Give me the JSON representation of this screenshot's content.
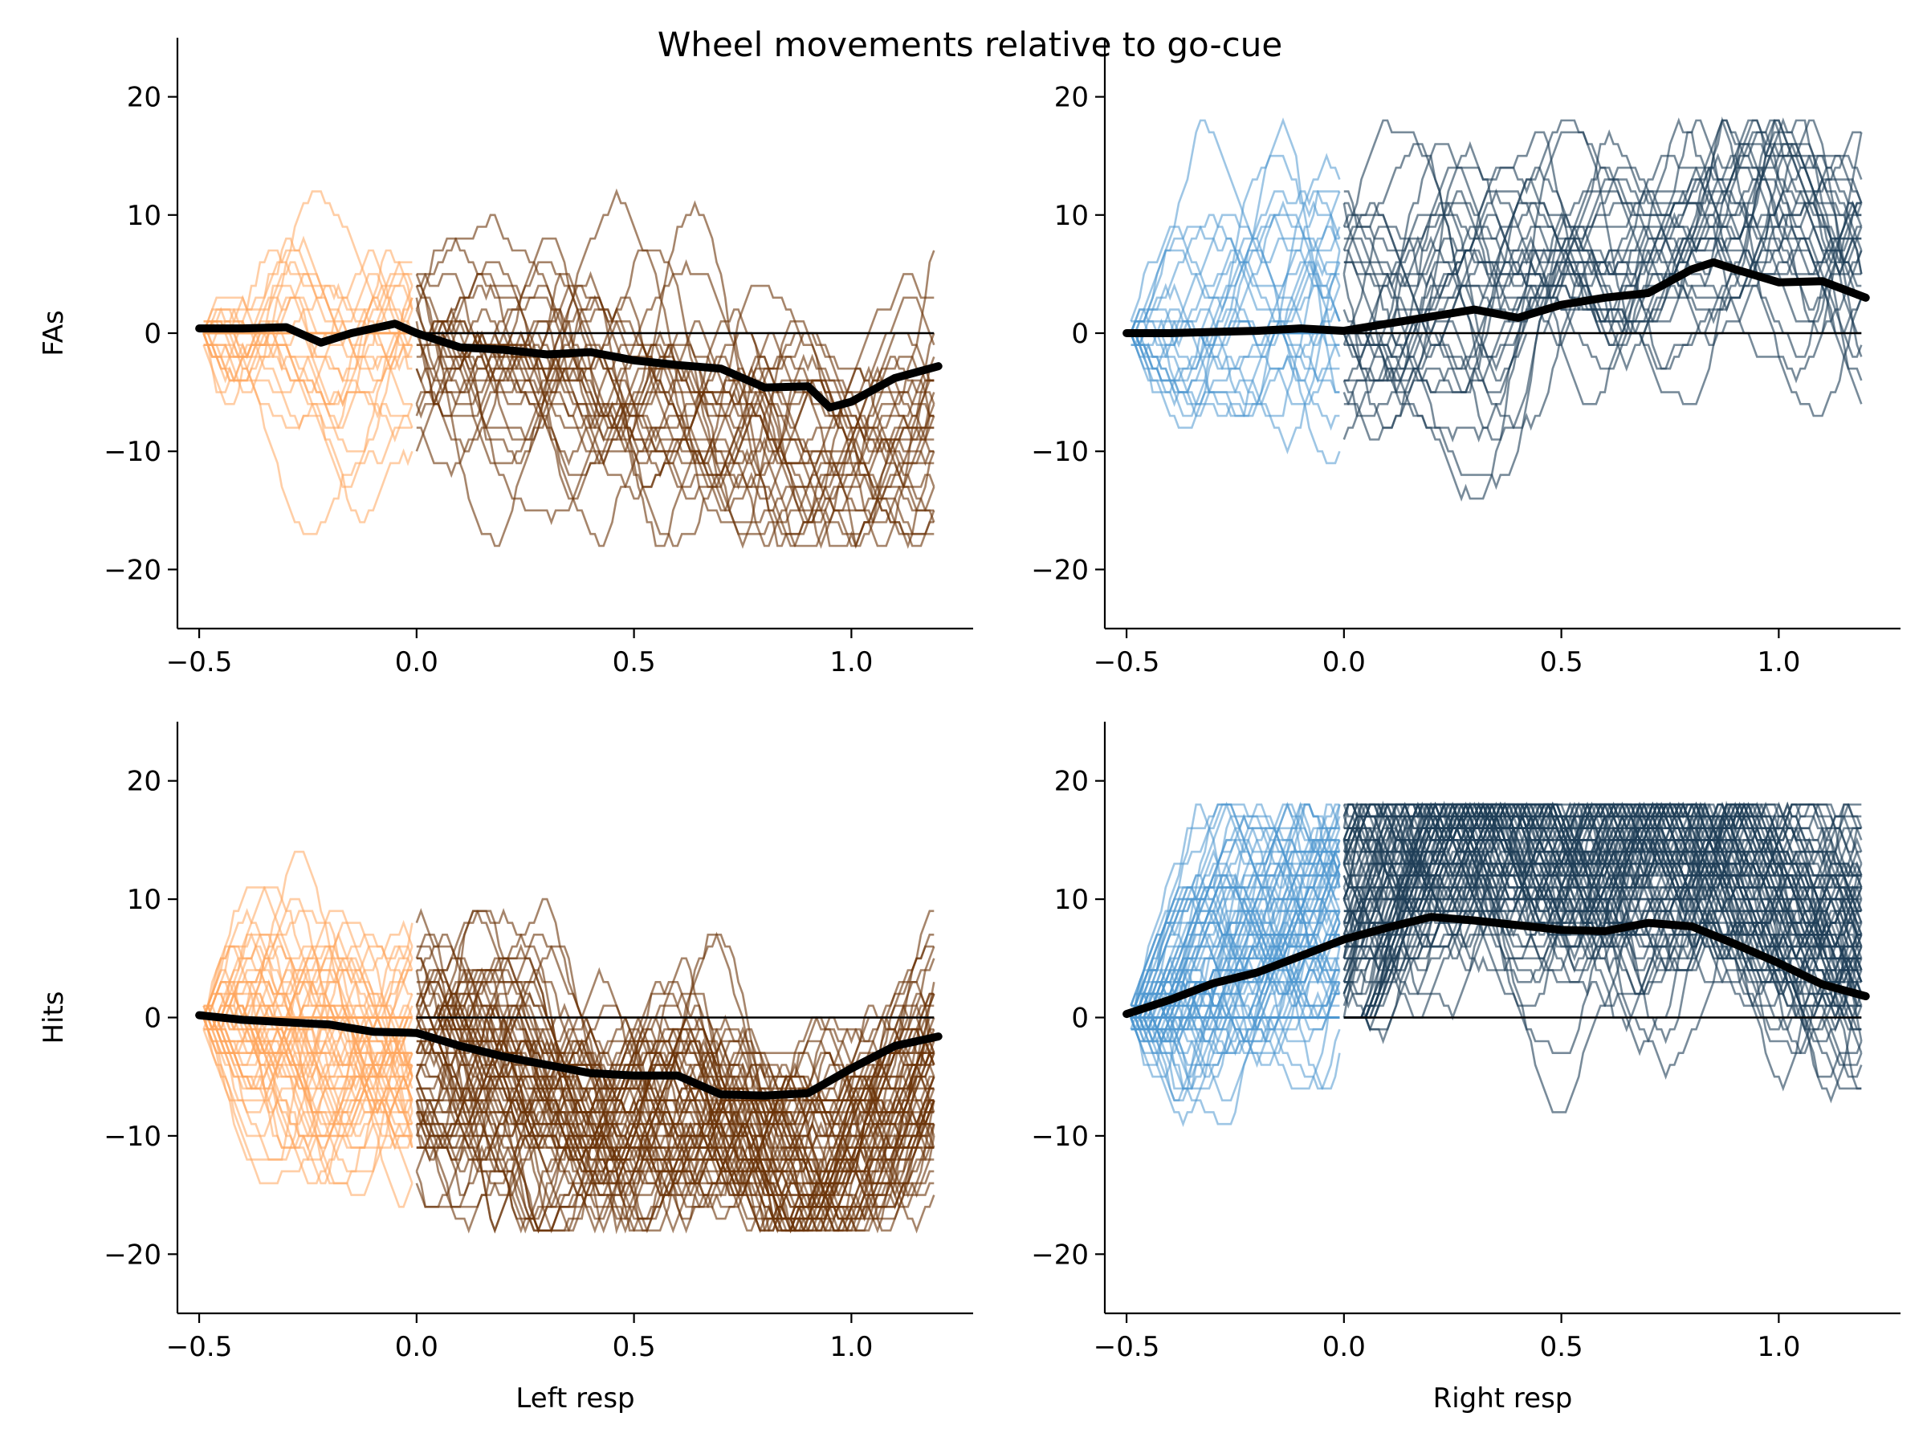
{
  "figure": {
    "title": "Wheel movements relative to go-cue"
  },
  "colors": {
    "left_pre": "#ffa55c",
    "left_post": "#6b3408",
    "right_pre": "#4f97cf",
    "right_post": "#1e3d57",
    "mean": "#000000"
  },
  "chart_data": [
    {
      "type": "line",
      "panel": "top-left",
      "ylabel": "FAs",
      "xlabel": "",
      "xlim": [
        -0.55,
        1.28
      ],
      "ylim": [
        -25,
        25
      ],
      "xticks": [
        -0.5,
        0.0,
        0.5,
        1.0
      ],
      "yticks": [
        -20,
        -10,
        0,
        10,
        20
      ],
      "xtick_labels": [
        "−0.5",
        "0.0",
        "0.5",
        "1.0"
      ],
      "ytick_labels": [
        "−20",
        "−10",
        "0",
        "10",
        "20"
      ],
      "trial_style": "left",
      "n_trials": 30,
      "trial_direction": -1,
      "mean": {
        "x": [
          -0.5,
          -0.4,
          -0.3,
          -0.22,
          -0.15,
          -0.05,
          0.0,
          0.1,
          0.2,
          0.3,
          0.4,
          0.5,
          0.6,
          0.7,
          0.8,
          0.9,
          0.95,
          1.0,
          1.1,
          1.2
        ],
        "y": [
          0.4,
          0.4,
          0.5,
          -0.8,
          0.0,
          0.8,
          0.0,
          -1.2,
          -1.4,
          -1.8,
          -1.6,
          -2.3,
          -2.7,
          -3.0,
          -4.6,
          -4.5,
          -6.3,
          -5.8,
          -3.8,
          -2.8
        ]
      }
    },
    {
      "type": "line",
      "panel": "top-right",
      "ylabel": "",
      "xlabel": "",
      "xlim": [
        -0.55,
        1.28
      ],
      "ylim": [
        -25,
        25
      ],
      "xticks": [
        -0.5,
        0.0,
        0.5,
        1.0
      ],
      "yticks": [
        -20,
        -10,
        0,
        10,
        20
      ],
      "xtick_labels": [
        "−0.5",
        "0.0",
        "0.5",
        "1.0"
      ],
      "ytick_labels": [
        "−20",
        "−10",
        "0",
        "10",
        "20"
      ],
      "trial_style": "right",
      "n_trials": 30,
      "trial_direction": 1,
      "mean": {
        "x": [
          -0.5,
          -0.4,
          -0.3,
          -0.2,
          -0.1,
          0.0,
          0.1,
          0.2,
          0.3,
          0.4,
          0.5,
          0.6,
          0.7,
          0.8,
          0.85,
          0.9,
          1.0,
          1.1,
          1.2
        ],
        "y": [
          0.0,
          0.0,
          0.1,
          0.2,
          0.4,
          0.2,
          0.8,
          1.4,
          2.0,
          1.3,
          2.4,
          3.0,
          3.4,
          5.4,
          6.0,
          5.4,
          4.3,
          4.4,
          3.0
        ]
      }
    },
    {
      "type": "line",
      "panel": "bottom-left",
      "ylabel": "Hits",
      "xlabel": "Left resp",
      "xlim": [
        -0.55,
        1.28
      ],
      "ylim": [
        -25,
        25
      ],
      "xticks": [
        -0.5,
        0.0,
        0.5,
        1.0
      ],
      "yticks": [
        -20,
        -10,
        0,
        10,
        20
      ],
      "xtick_labels": [
        "−0.5",
        "0.0",
        "0.5",
        "1.0"
      ],
      "ytick_labels": [
        "−20",
        "−10",
        "0",
        "10",
        "20"
      ],
      "trial_style": "left",
      "n_trials": 70,
      "trial_direction": -1,
      "mean": {
        "x": [
          -0.5,
          -0.4,
          -0.3,
          -0.2,
          -0.1,
          0.0,
          0.1,
          0.2,
          0.3,
          0.4,
          0.5,
          0.6,
          0.7,
          0.8,
          0.9,
          1.0,
          1.1,
          1.2
        ],
        "y": [
          0.2,
          -0.2,
          -0.4,
          -0.6,
          -1.2,
          -1.3,
          -2.4,
          -3.3,
          -4.0,
          -4.7,
          -4.9,
          -4.9,
          -6.5,
          -6.6,
          -6.4,
          -4.3,
          -2.4,
          -1.6
        ]
      }
    },
    {
      "type": "line",
      "panel": "bottom-right",
      "ylabel": "",
      "xlabel": "Right resp",
      "xlim": [
        -0.55,
        1.28
      ],
      "ylim": [
        -25,
        25
      ],
      "xticks": [
        -0.5,
        0.0,
        0.5,
        1.0
      ],
      "yticks": [
        -20,
        -10,
        0,
        10,
        20
      ],
      "xtick_labels": [
        "−0.5",
        "0.0",
        "0.5",
        "1.0"
      ],
      "ytick_labels": [
        "−20",
        "−10",
        "0",
        "10",
        "20"
      ],
      "trial_style": "right",
      "n_trials": 90,
      "trial_direction": 1,
      "mean": {
        "x": [
          -0.5,
          -0.4,
          -0.3,
          -0.2,
          -0.1,
          0.0,
          0.1,
          0.2,
          0.3,
          0.4,
          0.5,
          0.6,
          0.7,
          0.8,
          0.9,
          1.0,
          1.1,
          1.2
        ],
        "y": [
          0.3,
          1.5,
          2.9,
          3.8,
          5.2,
          6.6,
          7.6,
          8.5,
          8.2,
          7.8,
          7.4,
          7.3,
          8.0,
          7.7,
          6.2,
          4.6,
          2.8,
          1.8
        ]
      }
    }
  ]
}
